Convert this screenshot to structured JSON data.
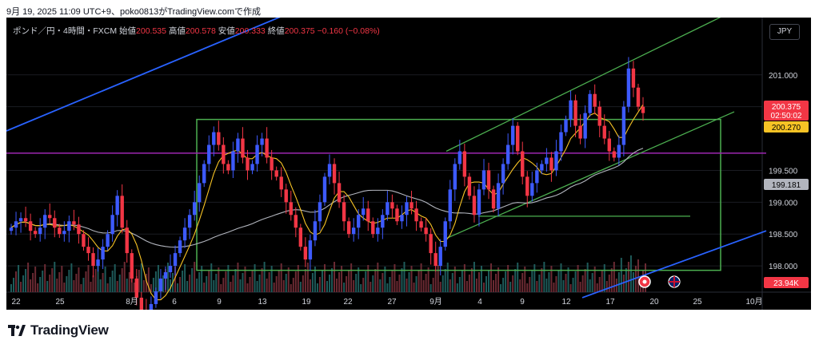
{
  "header": {
    "text": "9月 19, 2025 11:09 UTC+9、poko0813がTradingView.comで作成"
  },
  "legend": {
    "symbol": "ポンド／円・4時間・FXCM",
    "open_label": "始値",
    "open": "200.535",
    "high_label": "高値",
    "high": "200.578",
    "low_label": "安値",
    "low": "200.333",
    "close_label": "終値",
    "close": "200.375",
    "change": "−0.160 (−0.08%)"
  },
  "currency_button": "JPY",
  "brand": "TradingView",
  "colors": {
    "up": "#3d5afe",
    "down": "#f23645",
    "green": "#4caf50",
    "purple": "#9c27b0",
    "blue": "#2962ff",
    "ma_fast": "#f7c325",
    "ma_slow": "#b2b5be"
  },
  "chart_data": {
    "type": "candlestick",
    "price_axis": {
      "ticks": [
        "201.000",
        "200.500",
        "199.500",
        "199.000",
        "198.500",
        "198.000"
      ],
      "range": [
        197.7,
        201.8
      ]
    },
    "time_axis": {
      "ticks": [
        "22",
        "25",
        "8月",
        "6",
        "9",
        "13",
        "19",
        "22",
        "27",
        "9月",
        "4",
        "9",
        "12",
        "17",
        "20",
        "25",
        "10月"
      ]
    },
    "price_labels": [
      {
        "value": "200.375",
        "sub": "02:50:02",
        "color": "#f23645"
      },
      {
        "value": "200.270",
        "color": "#f7c325"
      },
      {
        "value": "199.181",
        "color": "#b2b5be"
      },
      {
        "value": "23.94K",
        "color": "#f23645"
      }
    ],
    "horizontal_levels": [
      {
        "price": 199.77,
        "color": "purple"
      },
      {
        "price": 198.78,
        "color": "green"
      }
    ],
    "rectangle": {
      "price_top": 200.3,
      "price_bottom": 197.93,
      "color": "green"
    },
    "closes": [
      198.6,
      198.7,
      198.75,
      198.7,
      198.55,
      198.5,
      198.6,
      198.8,
      198.75,
      198.6,
      198.5,
      198.55,
      198.7,
      198.65,
      198.5,
      198.3,
      198.2,
      198.0,
      198.1,
      198.3,
      198.5,
      198.8,
      199.1,
      198.6,
      198.2,
      197.8,
      197.5,
      197.3,
      197.2,
      197.4,
      197.6,
      197.8,
      197.9,
      198.0,
      198.2,
      198.4,
      198.6,
      198.8,
      199.0,
      199.3,
      199.6,
      199.9,
      200.1,
      199.9,
      199.6,
      199.5,
      199.8,
      200.0,
      199.7,
      199.5,
      199.6,
      199.9,
      200.0,
      199.7,
      199.5,
      199.4,
      199.2,
      199.0,
      198.8,
      198.6,
      198.3,
      198.1,
      198.4,
      198.7,
      199.0,
      199.4,
      199.6,
      199.3,
      199.0,
      198.7,
      198.5,
      198.6,
      198.8,
      198.9,
      198.7,
      198.5,
      198.6,
      198.8,
      199.0,
      198.9,
      198.7,
      198.8,
      199.0,
      198.9,
      198.7,
      198.6,
      198.5,
      198.2,
      198.0,
      198.3,
      198.7,
      199.2,
      199.6,
      199.8,
      199.4,
      199.1,
      198.8,
      199.2,
      199.5,
      199.2,
      198.9,
      199.3,
      199.6,
      199.9,
      200.2,
      199.8,
      199.4,
      199.1,
      199.3,
      199.5,
      199.6,
      199.7,
      199.5,
      199.8,
      200.1,
      200.3,
      200.6,
      200.2,
      200.0,
      200.4,
      200.7,
      200.5,
      200.2,
      200.0,
      199.8,
      199.7,
      199.9,
      200.5,
      201.1,
      200.8,
      200.5,
      200.4
    ]
  }
}
